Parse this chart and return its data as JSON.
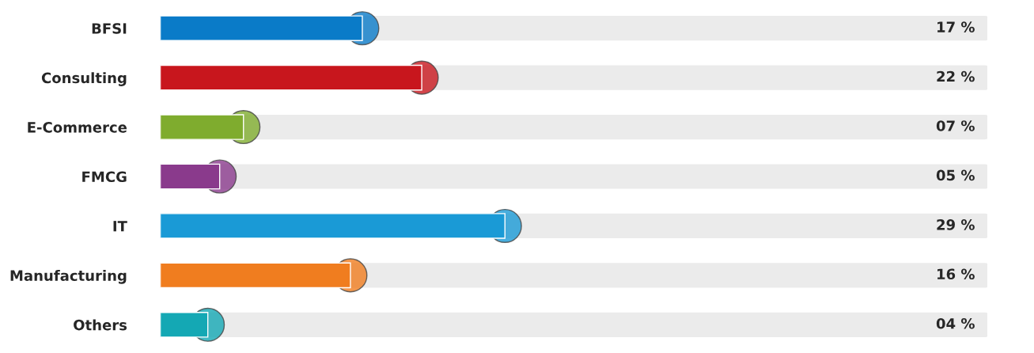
{
  "chart_data": {
    "type": "bar",
    "orientation": "horizontal",
    "categories": [
      "BFSI",
      "Consulting",
      "E-Commerce",
      "FMCG",
      "IT",
      "Manufacturing",
      "Others"
    ],
    "values": [
      17,
      22,
      7,
      5,
      29,
      16,
      4
    ],
    "value_labels": [
      "17 %",
      "22 %",
      "07 %",
      "05 %",
      "29 %",
      "16 %",
      "04 %"
    ],
    "colors": [
      "#0a7bc8",
      "#c8161d",
      "#7fac2e",
      "#8a3a8c",
      "#1a9ad6",
      "#f07d1f",
      "#14a8b4"
    ],
    "tick_labels": "y",
    "grid": false,
    "legend": false
  }
}
